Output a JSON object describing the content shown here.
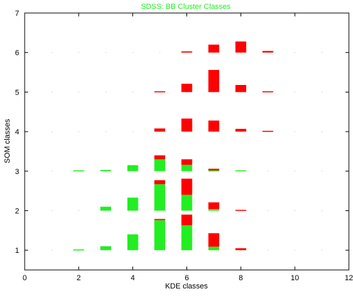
{
  "chart_data": {
    "type": "bar",
    "title": "SDSS: BB Cluster Classes",
    "xlabel": "KDE classes",
    "ylabel": "SOM classes",
    "xlim": [
      0,
      12
    ],
    "ylim": [
      0.5,
      7
    ],
    "xticks": [
      "0",
      "2",
      "4",
      "6",
      "8",
      "10",
      "12"
    ],
    "yticks": [
      "1",
      "2",
      "3",
      "4",
      "5",
      "6",
      "7"
    ],
    "grid": false,
    "colors": {
      "green": "#22ee22",
      "red": "#ff0000",
      "title": "#22ee22",
      "axis": "#000000",
      "grid_dot": "#bbbbbb"
    },
    "series": [
      {
        "color": "green",
        "bars": [
          {
            "x": 2,
            "y": 1,
            "h": 0.02
          },
          {
            "x": 3,
            "y": 1,
            "h": 0.1
          },
          {
            "x": 4,
            "y": 1,
            "h": 0.4
          },
          {
            "x": 5,
            "y": 1,
            "h": 0.76
          },
          {
            "x": 6,
            "y": 1,
            "h": 0.63
          },
          {
            "x": 7,
            "y": 1,
            "h": 0.09
          },
          {
            "x": 3,
            "y": 2,
            "h": 0.1
          },
          {
            "x": 4,
            "y": 2,
            "h": 0.33
          },
          {
            "x": 5,
            "y": 2,
            "h": 0.67
          },
          {
            "x": 6,
            "y": 2,
            "h": 0.4
          },
          {
            "x": 7,
            "y": 2,
            "h": 0.04
          },
          {
            "x": 2,
            "y": 3,
            "h": 0.02
          },
          {
            "x": 3,
            "y": 3,
            "h": 0.03
          },
          {
            "x": 4,
            "y": 3,
            "h": 0.15
          },
          {
            "x": 5,
            "y": 3,
            "h": 0.3
          },
          {
            "x": 6,
            "y": 3,
            "h": 0.16
          },
          {
            "x": 7,
            "y": 3,
            "h": 0.02
          },
          {
            "x": 8,
            "y": 3,
            "h": 0.02
          }
        ]
      },
      {
        "color": "red",
        "bars": [
          {
            "x": 5,
            "y": 1,
            "h": 0.03,
            "base": 0.76
          },
          {
            "x": 6,
            "y": 1,
            "h": 0.27,
            "base": 0.63
          },
          {
            "x": 7,
            "y": 1,
            "h": 0.34,
            "base": 0.09
          },
          {
            "x": 8,
            "y": 1,
            "h": 0.05
          },
          {
            "x": 5,
            "y": 2,
            "h": 0.1,
            "base": 0.67
          },
          {
            "x": 6,
            "y": 2,
            "h": 0.41,
            "base": 0.4
          },
          {
            "x": 7,
            "y": 2,
            "h": 0.17,
            "base": 0.04
          },
          {
            "x": 8,
            "y": 2,
            "h": 0.02
          },
          {
            "x": 5,
            "y": 3,
            "h": 0.1,
            "base": 0.3
          },
          {
            "x": 6,
            "y": 3,
            "h": 0.14,
            "base": 0.16
          },
          {
            "x": 7,
            "y": 3,
            "h": 0.04,
            "base": 0.02
          },
          {
            "x": 5,
            "y": 4,
            "h": 0.08
          },
          {
            "x": 6,
            "y": 4,
            "h": 0.33
          },
          {
            "x": 7,
            "y": 4,
            "h": 0.28
          },
          {
            "x": 8,
            "y": 4,
            "h": 0.07
          },
          {
            "x": 9,
            "y": 4,
            "h": 0.02
          },
          {
            "x": 5,
            "y": 5,
            "h": 0.02
          },
          {
            "x": 6,
            "y": 5,
            "h": 0.21
          },
          {
            "x": 7,
            "y": 5,
            "h": 0.56
          },
          {
            "x": 8,
            "y": 5,
            "h": 0.18
          },
          {
            "x": 9,
            "y": 5,
            "h": 0.02
          },
          {
            "x": 6,
            "y": 6,
            "h": 0.03
          },
          {
            "x": 7,
            "y": 6,
            "h": 0.2
          },
          {
            "x": 8,
            "y": 6,
            "h": 0.28
          },
          {
            "x": 9,
            "y": 6,
            "h": 0.04
          }
        ]
      }
    ]
  }
}
